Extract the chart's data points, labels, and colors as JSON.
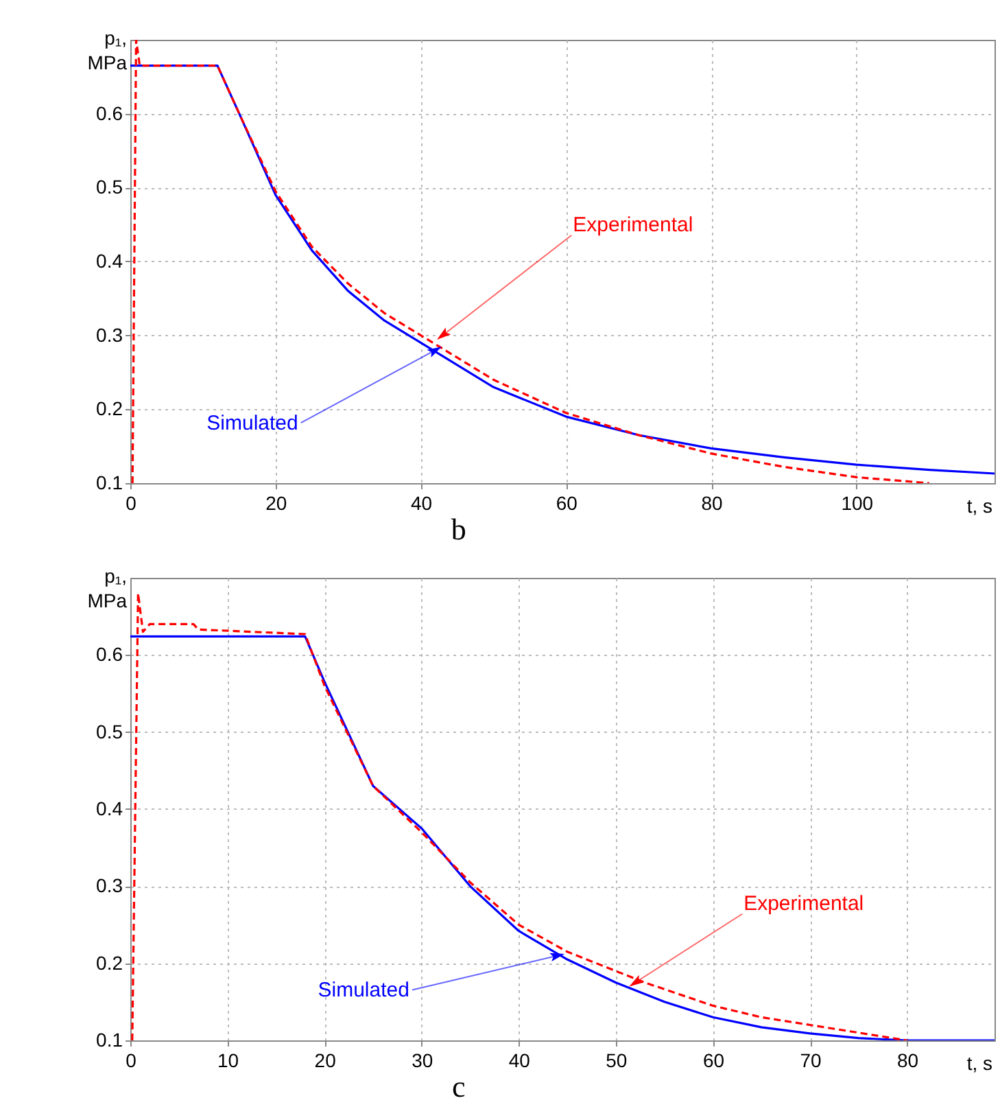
{
  "chart_data": [
    {
      "type": "line",
      "title": "b",
      "xlabel": "t, s",
      "ylabel": "p₁, MPa",
      "xlim": [
        0,
        119
      ],
      "xticks": [
        0,
        20,
        40,
        60,
        80,
        100
      ],
      "ylim": [
        0.1,
        0.7
      ],
      "yticks": [
        0.1,
        0.2,
        0.3,
        0.4,
        0.5,
        0.6
      ],
      "grid": true,
      "marker": "none",
      "series": [
        {
          "color": "#0000ff",
          "line_style": "solid",
          "x": [
            0,
            12,
            15,
            20,
            25,
            30,
            35,
            40,
            50,
            60,
            70,
            80,
            90,
            100,
            110,
            119
          ],
          "values": [
            0.665,
            0.665,
            0.6,
            0.49,
            0.415,
            0.36,
            0.32,
            0.29,
            0.23,
            0.19,
            0.165,
            0.147,
            0.135,
            0.125,
            0.118,
            0.113
          ]
        },
        {
          "color": "#ff0000",
          "line_style": "dashed",
          "x": [
            0.3,
            0.8,
            1.3,
            12,
            15,
            20,
            25,
            30,
            35,
            40,
            50,
            60,
            70,
            80,
            90,
            100,
            110
          ],
          "values": [
            0.1,
            0.7,
            0.665,
            0.665,
            0.6,
            0.495,
            0.42,
            0.37,
            0.33,
            0.3,
            0.24,
            0.195,
            0.165,
            0.14,
            0.122,
            0.108,
            0.1
          ]
        }
      ],
      "annotations": [
        {
          "text": "Experimental",
          "x": 43,
          "y": 0.3
        },
        {
          "text": "Simulated",
          "x": 42,
          "y": 0.28
        }
      ]
    },
    {
      "type": "line",
      "title": "c",
      "xlabel": "t, s",
      "ylabel": "p₁, MPa",
      "xlim": [
        0,
        89
      ],
      "xticks": [
        0,
        10,
        20,
        30,
        40,
        50,
        60,
        70,
        80
      ],
      "ylim": [
        0.1,
        0.7
      ],
      "yticks": [
        0.1,
        0.2,
        0.3,
        0.4,
        0.5,
        0.6
      ],
      "grid": true,
      "marker": "none",
      "series": [
        {
          "color": "#0000ff",
          "line_style": "solid",
          "x": [
            0,
            18,
            20,
            25,
            30,
            35,
            40,
            45,
            50,
            55,
            60,
            65,
            70,
            75,
            80,
            89
          ],
          "values": [
            0.624,
            0.624,
            0.565,
            0.43,
            0.375,
            0.3,
            0.242,
            0.205,
            0.175,
            0.15,
            0.13,
            0.117,
            0.109,
            0.103,
            0.1,
            0.1
          ]
        },
        {
          "color": "#ff0000",
          "line_style": "dashed",
          "x": [
            0.2,
            0.8,
            1.3,
            2,
            6.5,
            7,
            18,
            20,
            25,
            30,
            35,
            40,
            45,
            50,
            53,
            60,
            65,
            70,
            75,
            80
          ],
          "values": [
            0.1,
            0.68,
            0.63,
            0.64,
            0.64,
            0.633,
            0.627,
            0.56,
            0.43,
            0.37,
            0.305,
            0.25,
            0.215,
            0.19,
            0.175,
            0.145,
            0.13,
            0.12,
            0.11,
            0.1
          ]
        }
      ],
      "annotations": [
        {
          "text": "Experimental",
          "x": 52,
          "y": 0.175
        },
        {
          "text": "Simulated",
          "x": 44,
          "y": 0.21
        }
      ]
    }
  ]
}
